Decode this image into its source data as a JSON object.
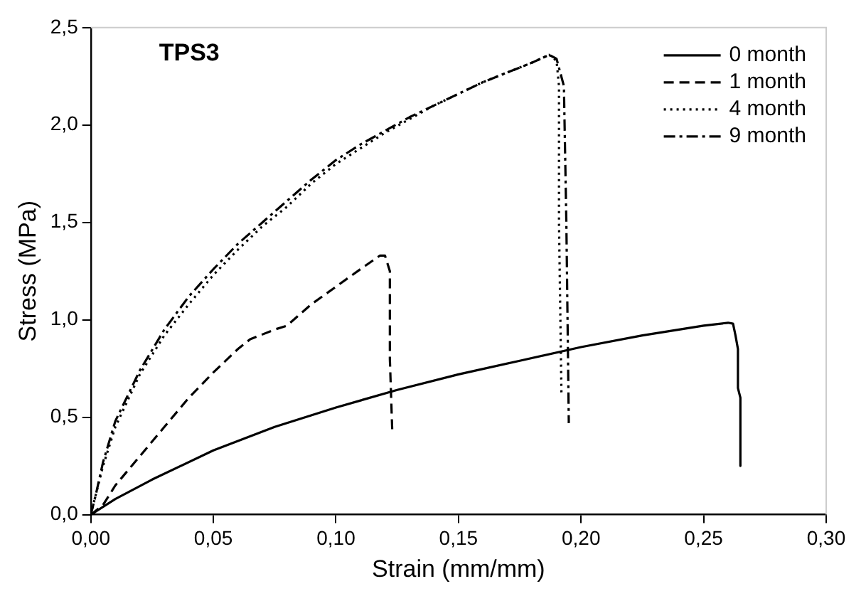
{
  "chart_data": {
    "type": "line",
    "title": "TPS3",
    "xlabel": "Strain (mm/mm)",
    "ylabel": "Stress (MPa)",
    "xlim": [
      0,
      0.3
    ],
    "ylim": [
      0,
      2.5
    ],
    "xticks": [
      {
        "value": 0,
        "label": "0,00"
      },
      {
        "value": 0.05,
        "label": "0,05"
      },
      {
        "value": 0.1,
        "label": "0,10"
      },
      {
        "value": 0.15,
        "label": "0,15"
      },
      {
        "value": 0.2,
        "label": "0,20"
      },
      {
        "value": 0.25,
        "label": "0,25"
      },
      {
        "value": 0.3,
        "label": "0,30"
      }
    ],
    "yticks": [
      {
        "value": 0,
        "label": "0,0"
      },
      {
        "value": 0.5,
        "label": "0,5"
      },
      {
        "value": 1,
        "label": "1,0"
      },
      {
        "value": 1.5,
        "label": "1,5"
      },
      {
        "value": 2,
        "label": "2,0"
      },
      {
        "value": 2.5,
        "label": "2,5"
      }
    ],
    "grid": false,
    "legend": "top right",
    "marker": "none",
    "series": [
      {
        "name": "0 month",
        "color": "#000000",
        "line_style": "solid",
        "x": [
          0,
          0.01,
          0.025,
          0.05,
          0.075,
          0.1,
          0.125,
          0.15,
          0.175,
          0.2,
          0.225,
          0.25,
          0.26,
          0.262,
          0.263,
          0.264,
          0.264,
          0.265,
          0.265
        ],
        "values": [
          0,
          0.08,
          0.18,
          0.33,
          0.45,
          0.55,
          0.64,
          0.72,
          0.79,
          0.86,
          0.92,
          0.97,
          0.985,
          0.98,
          0.92,
          0.85,
          0.65,
          0.6,
          0.25
        ]
      },
      {
        "name": "1 month",
        "color": "#000000",
        "line_style": "dashed",
        "x": [
          0,
          0.005,
          0.01,
          0.02,
          0.03,
          0.04,
          0.05,
          0.06,
          0.065,
          0.075,
          0.08,
          0.09,
          0.1,
          0.11,
          0.118,
          0.12,
          0.122,
          0.122,
          0.123
        ],
        "values": [
          0,
          0.05,
          0.15,
          0.3,
          0.45,
          0.6,
          0.73,
          0.85,
          0.9,
          0.95,
          0.97,
          1.08,
          1.17,
          1.26,
          1.33,
          1.33,
          1.25,
          0.8,
          0.42
        ]
      },
      {
        "name": "4 month",
        "color": "#000000",
        "line_style": "dotted",
        "x": [
          0,
          0.002,
          0.005,
          0.01,
          0.02,
          0.03,
          0.04,
          0.05,
          0.06,
          0.07,
          0.08,
          0.09,
          0.1,
          0.11,
          0.12,
          0.13,
          0.14,
          0.15,
          0.16,
          0.17,
          0.18,
          0.187,
          0.19,
          0.191,
          0.191,
          0.192
        ],
        "values": [
          0,
          0.1,
          0.25,
          0.45,
          0.72,
          0.92,
          1.08,
          1.23,
          1.36,
          1.48,
          1.58,
          1.7,
          1.8,
          1.88,
          1.96,
          2.03,
          2.1,
          2.16,
          2.22,
          2.27,
          2.32,
          2.36,
          2.33,
          2.2,
          1.5,
          0.62
        ]
      },
      {
        "name": "9 month",
        "color": "#000000",
        "line_style": "dashdot",
        "x": [
          0,
          0.002,
          0.005,
          0.01,
          0.02,
          0.03,
          0.04,
          0.05,
          0.06,
          0.07,
          0.08,
          0.09,
          0.1,
          0.11,
          0.12,
          0.13,
          0.14,
          0.15,
          0.16,
          0.17,
          0.18,
          0.187,
          0.19,
          0.193,
          0.194,
          0.195
        ],
        "values": [
          0,
          0.1,
          0.27,
          0.48,
          0.74,
          0.95,
          1.12,
          1.26,
          1.39,
          1.5,
          1.61,
          1.72,
          1.82,
          1.9,
          1.97,
          2.04,
          2.1,
          2.16,
          2.22,
          2.27,
          2.32,
          2.36,
          2.34,
          2.2,
          1.5,
          0.47
        ]
      }
    ]
  }
}
